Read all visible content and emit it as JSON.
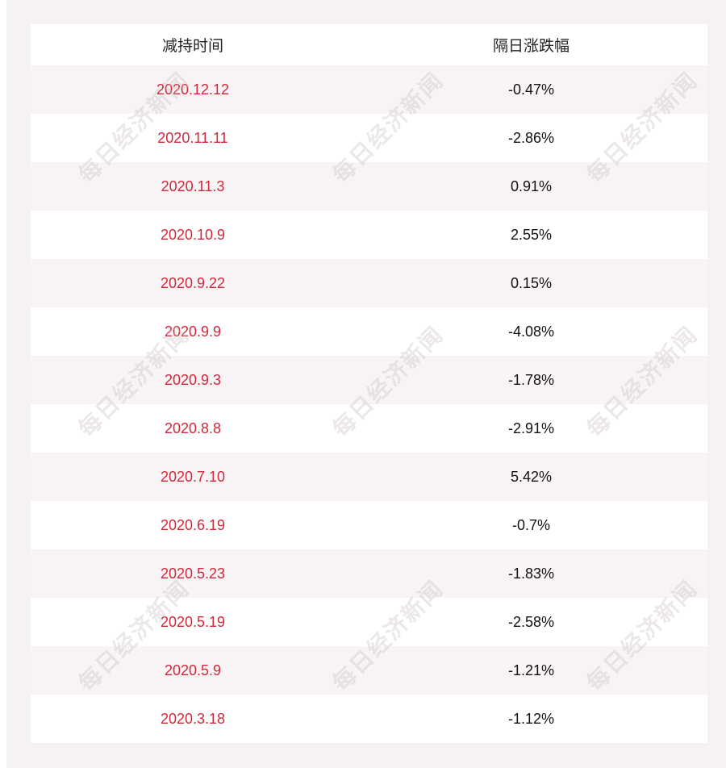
{
  "table": {
    "header": [
      "减持时间",
      "隔日涨跌幅"
    ],
    "rows": [
      [
        "2020.12.12",
        "-0.47%"
      ],
      [
        "2020.11.11",
        "-2.86%"
      ],
      [
        "2020.11.3",
        "0.91%"
      ],
      [
        "2020.10.9",
        "2.55%"
      ],
      [
        "2020.9.22",
        "0.15%"
      ],
      [
        "2020.9.9",
        "-4.08%"
      ],
      [
        "2020.9.3",
        "-1.78%"
      ],
      [
        "2020.8.8",
        "-2.91%"
      ],
      [
        "2020.7.10",
        "5.42%"
      ],
      [
        "2020.6.19",
        "-0.7%"
      ],
      [
        "2020.5.23",
        "-1.83%"
      ],
      [
        "2020.5.19",
        "-2.58%"
      ],
      [
        "2020.5.9",
        "-1.21%"
      ],
      [
        "2020.3.18",
        "-1.12%"
      ]
    ]
  },
  "watermark": "每日经济新闻"
}
